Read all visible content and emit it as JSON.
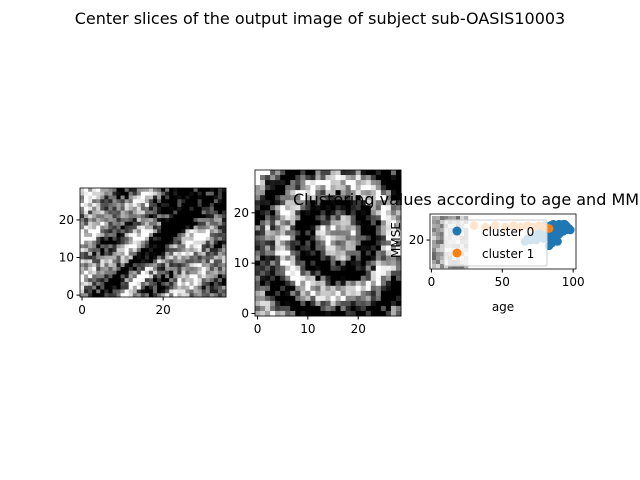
{
  "figure": {
    "suptitle": "Center slices of the output image of subject sub-OASIS10003"
  },
  "slices": [
    {
      "x_ticks": [
        "0",
        "20"
      ],
      "y_ticks": [
        "0",
        "10",
        "20"
      ],
      "x_range": [
        0,
        36
      ],
      "y_range": [
        0,
        29
      ]
    },
    {
      "x_ticks": [
        "0",
        "10",
        "20"
      ],
      "y_ticks": [
        "0",
        "10",
        "20"
      ],
      "x_range": [
        0,
        29
      ],
      "y_range": [
        0,
        29
      ]
    }
  ],
  "colors": {
    "cluster0": "#1f77b4",
    "cluster1": "#ff7f0e"
  },
  "chart_data": {
    "type": "scatter",
    "title": "Clustering values according to age and MMSE",
    "xlabel": "age",
    "ylabel": "MMSE",
    "x_ticks": [
      "0",
      "50",
      "100"
    ],
    "y_ticks": [
      "20"
    ],
    "xlim": [
      -1,
      102
    ],
    "ylim": [
      0,
      38
    ],
    "legend_location": "upper-left",
    "series": [
      {
        "name": "cluster 0",
        "color": "#1f77b4",
        "points": [
          [
            66,
            19
          ],
          [
            68,
            21
          ],
          [
            70,
            20
          ],
          [
            71,
            22
          ],
          [
            72,
            21
          ],
          [
            73,
            23
          ],
          [
            74,
            20
          ],
          [
            75,
            24
          ],
          [
            76,
            22
          ],
          [
            77,
            25
          ],
          [
            78,
            23
          ],
          [
            79,
            21
          ],
          [
            80,
            26
          ],
          [
            81,
            24
          ],
          [
            82,
            27
          ],
          [
            83,
            22
          ],
          [
            84,
            25
          ],
          [
            85,
            28
          ],
          [
            86,
            26
          ],
          [
            87,
            24
          ],
          [
            88,
            29
          ],
          [
            89,
            27
          ],
          [
            90,
            25
          ],
          [
            91,
            28
          ],
          [
            92,
            30
          ],
          [
            93,
            26
          ],
          [
            94,
            29
          ],
          [
            95,
            27
          ],
          [
            96,
            28
          ],
          [
            83,
            16
          ],
          [
            85,
            18
          ],
          [
            87,
            20
          ],
          [
            89,
            19
          ],
          [
            91,
            30
          ],
          [
            93,
            31
          ],
          [
            95,
            30
          ],
          [
            78,
            29
          ],
          [
            80,
            30
          ],
          [
            82,
            28
          ],
          [
            84,
            30
          ],
          [
            86,
            31
          ],
          [
            88,
            30
          ],
          [
            90,
            31
          ],
          [
            92,
            29
          ],
          [
            94,
            31
          ],
          [
            97,
            28
          ],
          [
            98,
            27
          ],
          [
            86,
            28
          ],
          [
            88,
            26
          ],
          [
            90,
            24
          ]
        ]
      },
      {
        "name": "cluster 1",
        "color": "#ff7f0e",
        "points": [
          [
            30,
            30
          ],
          [
            38,
            29
          ],
          [
            45,
            30
          ],
          [
            52,
            29
          ],
          [
            58,
            30
          ],
          [
            63,
            29
          ],
          [
            68,
            30
          ],
          [
            72,
            29
          ],
          [
            76,
            30
          ],
          [
            80,
            29
          ],
          [
            83,
            28
          ]
        ]
      }
    ]
  }
}
